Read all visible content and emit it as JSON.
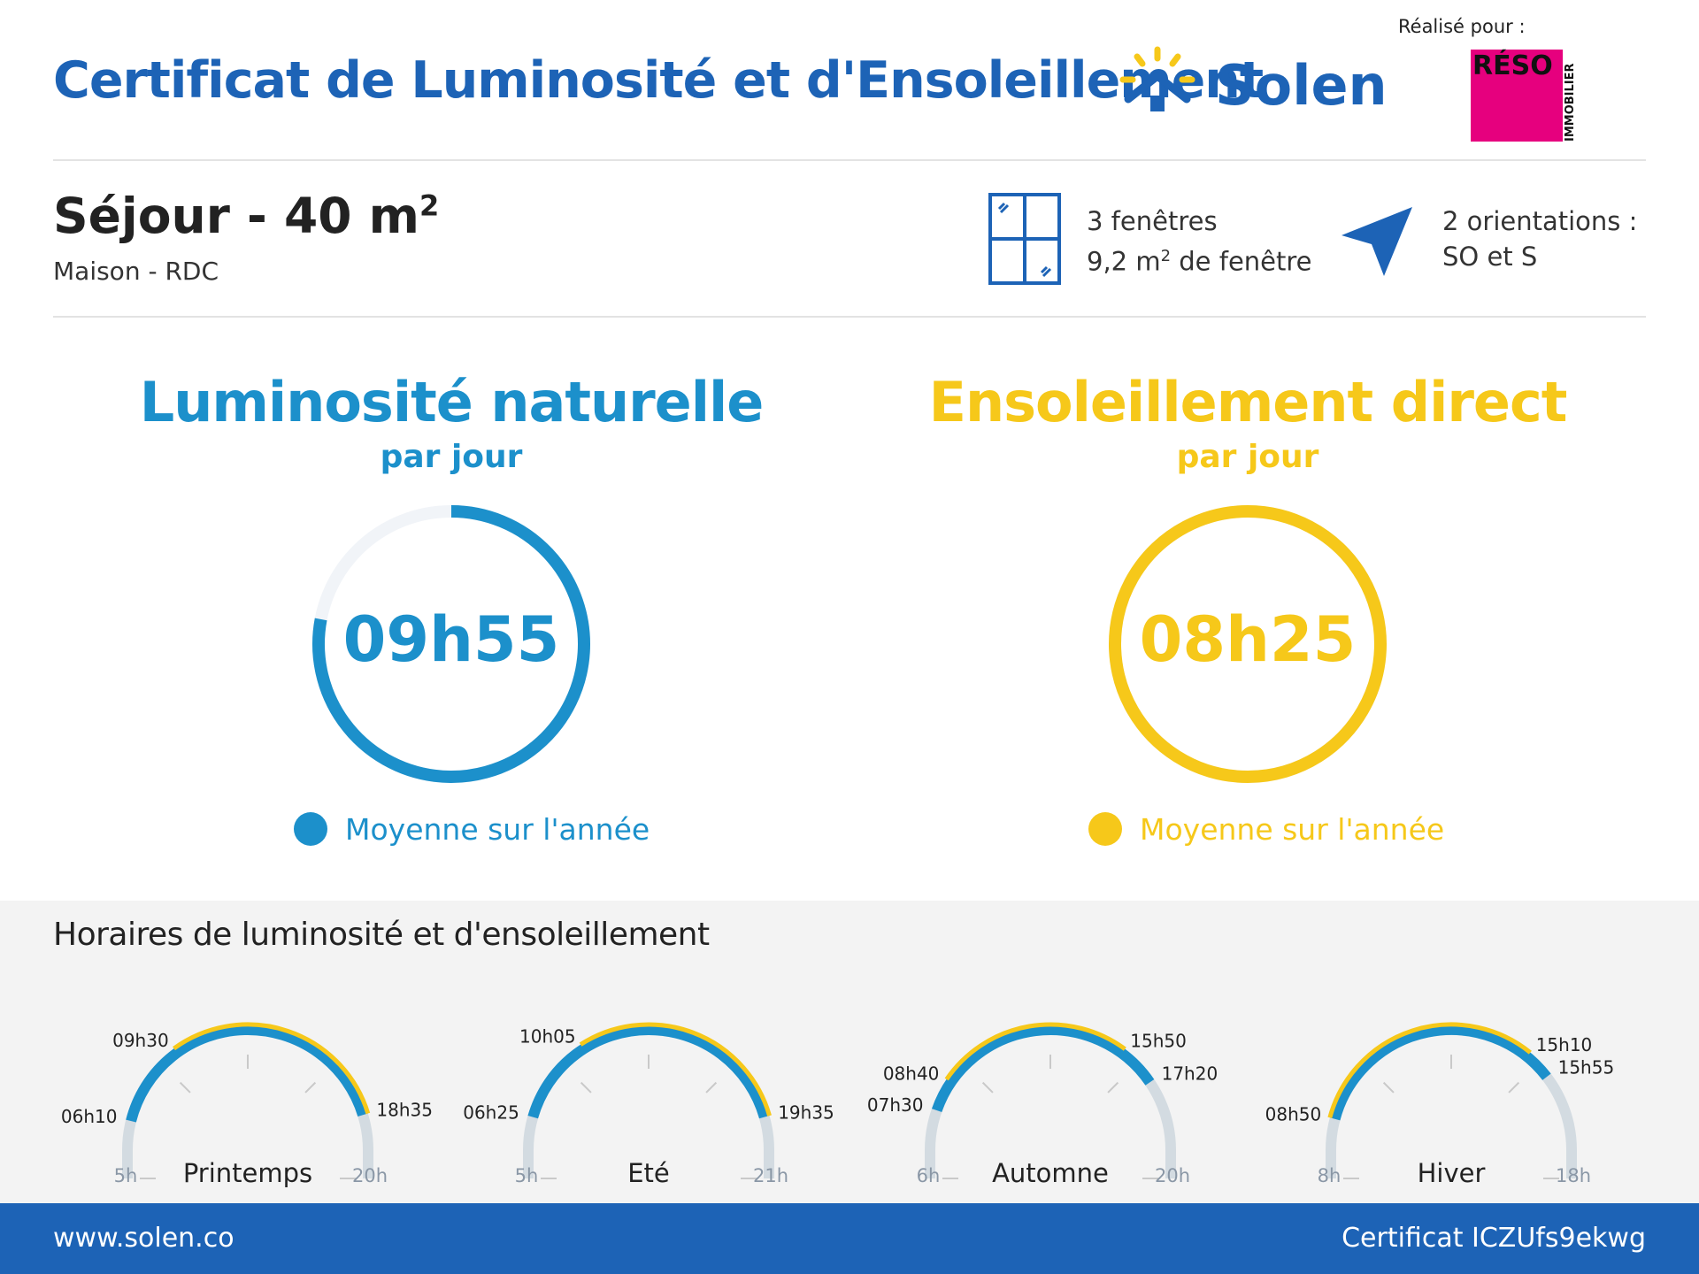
{
  "header": {
    "title": "Certificat de Luminosité et d'Ensoleillement",
    "brand": "Solen",
    "made_for": "Réalisé pour :",
    "client_logo_text": "RÉSO",
    "client_logo_sub": "IMMOBILIER"
  },
  "room": {
    "name": "Séjour - 40 m",
    "name_exp": "2",
    "location": "Maison - RDC",
    "windows_line1": "3 fenêtres",
    "windows_line2a": "9,2 m",
    "windows_line2_exp": "2",
    "windows_line2b": " de fenêtre",
    "orient_line1": "2 orientations :",
    "orient_line2": "SO et S"
  },
  "metrics": {
    "luminosity": {
      "title": "Luminosité naturelle",
      "sub": "par jour",
      "value": "09h55",
      "legend": "Moyenne sur l'année",
      "fraction": 0.78,
      "color": "#1c90cb"
    },
    "sunshine": {
      "title": "Ensoleillement direct",
      "sub": "par jour",
      "value": "08h25",
      "legend": "Moyenne sur l'année",
      "fraction": 1.0,
      "color": "#f6c81a"
    }
  },
  "schedule": {
    "title": "Horaires de luminosité et d'ensoleillement",
    "seasons": [
      {
        "name": "Printemps",
        "start_label": "5h",
        "end_label": "20h",
        "range": [
          5,
          20
        ],
        "light": [
          "06h10",
          "18h35"
        ],
        "sun": [
          "09h30",
          "18h35"
        ]
      },
      {
        "name": "Eté",
        "start_label": "5h",
        "end_label": "21h",
        "range": [
          5,
          21
        ],
        "light": [
          "06h25",
          "19h35"
        ],
        "sun": [
          "10h05",
          "19h35"
        ]
      },
      {
        "name": "Automne",
        "start_label": "6h",
        "end_label": "20h",
        "range": [
          6,
          20
        ],
        "light": [
          "07h30",
          "17h20"
        ],
        "sun": [
          "08h40",
          "15h50"
        ]
      },
      {
        "name": "Hiver",
        "start_label": "8h",
        "end_label": "18h",
        "range": [
          8,
          18
        ],
        "light": [
          "08h50",
          "15h55"
        ],
        "sun": [
          "08h50",
          "15h10"
        ]
      }
    ]
  },
  "footer": {
    "website": "www.solen.co",
    "certificate": "Certificat ICZUfs9ekwg"
  },
  "colors": {
    "brand_blue": "#1d63b6",
    "light_blue": "#1c90cb",
    "sun_yellow": "#f6c81a",
    "track_gray": "#d3dbe1",
    "reso_pink": "#e6007e"
  }
}
